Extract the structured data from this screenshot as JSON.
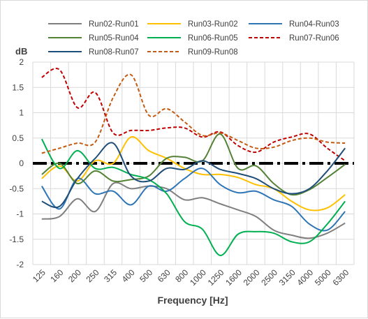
{
  "chart_data": {
    "type": "line",
    "xlabel": "Frequency [Hz]",
    "ylabel": "dB",
    "ylim": [
      -2,
      2
    ],
    "ytick_step": 0.5,
    "grid": true,
    "legend_position": "top",
    "categories": [
      "125",
      "160",
      "200",
      "250",
      "315",
      "400",
      "500",
      "630",
      "800",
      "1000",
      "1250",
      "1600",
      "2000",
      "2500",
      "3150",
      "4000",
      "5000",
      "6300"
    ],
    "reference_line": {
      "y": 0,
      "style": "dash-dot",
      "color": "#000000"
    },
    "series": [
      {
        "name": "Run02-Run01",
        "color": "#7f7f7f",
        "dash": "solid",
        "values": [
          -1.1,
          -1.05,
          -0.7,
          -0.95,
          -0.4,
          -0.5,
          -0.45,
          -0.5,
          -0.72,
          -0.68,
          -0.8,
          -0.92,
          -1.05,
          -1.32,
          -1.42,
          -1.48,
          -1.38,
          -1.18
        ]
      },
      {
        "name": "Run03-Run02",
        "color": "#ffc000",
        "dash": "solid",
        "values": [
          -0.3,
          -0.05,
          -0.35,
          0.05,
          0.0,
          0.52,
          0.25,
          0.1,
          -0.1,
          -0.22,
          -0.22,
          -0.28,
          -0.42,
          -0.5,
          -0.75,
          -0.92,
          -0.88,
          -0.62
        ]
      },
      {
        "name": "Run04-Run03",
        "color": "#2e75b6",
        "dash": "solid",
        "values": [
          -0.45,
          -0.9,
          -0.3,
          -0.6,
          -0.55,
          -0.82,
          -0.45,
          -0.55,
          -0.3,
          -0.1,
          -0.42,
          -0.58,
          -0.55,
          -0.72,
          -0.85,
          -1.2,
          -1.32,
          -0.95
        ]
      },
      {
        "name": "Run05-Run04",
        "color": "#548235",
        "dash": "solid",
        "values": [
          -0.22,
          0.0,
          -0.4,
          -0.15,
          -0.35,
          -0.32,
          -0.25,
          0.1,
          0.12,
          0.05,
          0.58,
          -0.1,
          -0.05,
          -0.4,
          -0.62,
          -0.52,
          -0.28,
          -0.02
        ]
      },
      {
        "name": "Run06-Run05",
        "color": "#00b050",
        "dash": "solid",
        "values": [
          0.48,
          -0.1,
          0.25,
          -0.1,
          -0.08,
          -0.22,
          -0.32,
          -0.6,
          -1.15,
          -1.3,
          -1.82,
          -1.4,
          -1.35,
          -1.38,
          -1.55,
          -1.55,
          -1.2,
          -0.75
        ]
      },
      {
        "name": "Run07-Run06",
        "color": "#c00000",
        "dash": "dashed",
        "values": [
          1.7,
          1.85,
          1.1,
          1.4,
          0.6,
          0.65,
          0.65,
          0.7,
          0.7,
          0.52,
          0.62,
          0.35,
          0.22,
          0.42,
          0.52,
          0.58,
          0.3,
          0.05
        ]
      },
      {
        "name": "Run08-Run07",
        "color": "#1f4e79",
        "dash": "solid",
        "values": [
          -0.75,
          -0.85,
          -0.3,
          0.1,
          0.4,
          -0.25,
          -0.35,
          -0.1,
          -0.12,
          0.05,
          -0.12,
          -0.2,
          -0.3,
          -0.5,
          -0.6,
          -0.5,
          -0.15,
          0.3
        ]
      },
      {
        "name": "Run09-Run08",
        "color": "#c55a11",
        "dash": "dashed",
        "values": [
          0.2,
          0.3,
          0.4,
          0.42,
          1.3,
          1.75,
          0.95,
          1.08,
          0.82,
          0.55,
          0.6,
          0.45,
          0.3,
          0.32,
          0.45,
          0.5,
          0.42,
          0.4
        ]
      }
    ]
  }
}
